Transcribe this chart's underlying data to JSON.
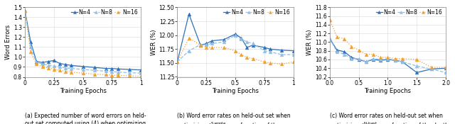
{
  "plot1": {
    "xlabel": "Training Epochs",
    "ylabel": "Word Errors",
    "xlim": [
      0,
      1.0
    ],
    "ylim": [
      0.8,
      1.5
    ],
    "yticks": [
      0.8,
      0.9,
      1.0,
      1.1,
      1.2,
      1.3,
      1.4,
      1.5
    ],
    "xticks": [
      0,
      0.25,
      0.5,
      0.75,
      1.0
    ],
    "xtick_labels": [
      "0",
      "0.25",
      "0.5",
      "0.75",
      "1"
    ],
    "legend_labels": [
      "N=4",
      "N=8",
      "N=16"
    ],
    "colors": [
      "#3070b8",
      "#90c0e8",
      "#f0a030"
    ],
    "markers": [
      "^",
      "^",
      "^"
    ],
    "linestyles": [
      "-",
      "--",
      ":"
    ],
    "N4_x": [
      0.0,
      0.05,
      0.1,
      0.15,
      0.2,
      0.25,
      0.3,
      0.35,
      0.4,
      0.5,
      0.6,
      0.7,
      0.75,
      0.8,
      0.9,
      1.0
    ],
    "N4_y": [
      1.47,
      1.15,
      0.955,
      0.945,
      0.955,
      0.965,
      0.935,
      0.925,
      0.915,
      0.905,
      0.895,
      0.885,
      0.885,
      0.88,
      0.875,
      0.87
    ],
    "N8_x": [
      0.0,
      0.05,
      0.1,
      0.15,
      0.2,
      0.25,
      0.3,
      0.35,
      0.4,
      0.5,
      0.6,
      0.7,
      0.75,
      0.8,
      0.9,
      1.0
    ],
    "N8_y": [
      1.47,
      1.1,
      0.945,
      0.93,
      0.92,
      0.91,
      0.9,
      0.89,
      0.885,
      0.875,
      0.865,
      0.858,
      0.853,
      0.848,
      0.842,
      0.838
    ],
    "N16_x": [
      0.0,
      0.05,
      0.1,
      0.15,
      0.2,
      0.25,
      0.3,
      0.35,
      0.4,
      0.5,
      0.6,
      0.7,
      0.75,
      0.8,
      0.9,
      1.0
    ],
    "N16_y": [
      1.47,
      1.05,
      0.93,
      0.905,
      0.89,
      0.878,
      0.867,
      0.855,
      0.848,
      0.838,
      0.828,
      0.822,
      0.818,
      0.815,
      0.81,
      0.805
    ]
  },
  "plot2": {
    "xlabel": "Training Epochs",
    "ylabel": "WER (%)",
    "xlim": [
      0,
      1.0
    ],
    "ylim": [
      11.25,
      12.5
    ],
    "yticks": [
      11.25,
      11.5,
      11.75,
      12.0,
      12.25,
      12.5
    ],
    "xticks": [
      0,
      0.25,
      0.5,
      0.75,
      1.0
    ],
    "xtick_labels": [
      "0",
      "0.25",
      "0.5",
      "0.75",
      "1"
    ],
    "legend_labels": [
      "N=4",
      "N=8",
      "N=16"
    ],
    "colors": [
      "#3070b8",
      "#90c0e8",
      "#f0a030"
    ],
    "markers": [
      "^",
      "^",
      "^"
    ],
    "linestyles": [
      "-",
      "--",
      ":"
    ],
    "N4_x": [
      0.0,
      0.1,
      0.2,
      0.25,
      0.3,
      0.4,
      0.5,
      0.55,
      0.6,
      0.65,
      0.75,
      0.8,
      0.9,
      1.0
    ],
    "N4_y": [
      11.52,
      12.38,
      11.82,
      11.85,
      11.9,
      11.92,
      12.02,
      11.95,
      11.78,
      11.82,
      11.78,
      11.75,
      11.73,
      11.72
    ],
    "N8_x": [
      0.0,
      0.1,
      0.2,
      0.25,
      0.3,
      0.4,
      0.5,
      0.55,
      0.6,
      0.65,
      0.75,
      0.8,
      0.9,
      1.0
    ],
    "N8_y": [
      11.52,
      11.72,
      11.83,
      11.83,
      11.85,
      11.88,
      12.0,
      11.93,
      11.88,
      11.85,
      11.72,
      11.7,
      11.65,
      11.65
    ],
    "N16_x": [
      0.0,
      0.1,
      0.2,
      0.25,
      0.3,
      0.4,
      0.5,
      0.55,
      0.6,
      0.65,
      0.75,
      0.8,
      0.9,
      1.0
    ],
    "N16_y": [
      11.52,
      11.95,
      11.82,
      11.78,
      11.78,
      11.78,
      11.72,
      11.65,
      11.6,
      11.58,
      11.52,
      11.5,
      11.48,
      11.52
    ]
  },
  "plot3": {
    "xlabel": "Training Epochs",
    "ylabel": "WER (%)",
    "xlim": [
      0.0,
      2.0
    ],
    "ylim": [
      10.2,
      11.8
    ],
    "yticks": [
      10.2,
      10.4,
      10.6,
      10.8,
      11.0,
      11.2,
      11.4,
      11.6,
      11.8
    ],
    "xticks": [
      0.0,
      0.5,
      1.0,
      1.5,
      2.0
    ],
    "xtick_labels": [
      "0.0",
      "0.5",
      "1.0",
      "1.5",
      "2.0"
    ],
    "legend_labels": [
      "N=4",
      "N=8",
      "N=16"
    ],
    "colors": [
      "#3070b8",
      "#90c0e8",
      "#f0a030"
    ],
    "markers": [
      "^",
      "^",
      "^"
    ],
    "linestyles": [
      "-",
      "--",
      ":"
    ],
    "N4_x": [
      0.0,
      0.125,
      0.25,
      0.375,
      0.5,
      0.625,
      0.75,
      0.875,
      1.0,
      1.125,
      1.25,
      1.5,
      1.75,
      2.0
    ],
    "N4_y": [
      11.08,
      10.82,
      10.78,
      10.65,
      10.6,
      10.55,
      10.6,
      10.58,
      10.6,
      10.58,
      10.55,
      10.3,
      10.38,
      10.4
    ],
    "N8_x": [
      0.0,
      0.125,
      0.25,
      0.375,
      0.5,
      0.625,
      0.75,
      0.875,
      1.0,
      1.125,
      1.25,
      1.5,
      1.75,
      2.0
    ],
    "N8_y": [
      11.08,
      10.78,
      10.72,
      10.62,
      10.62,
      10.55,
      10.62,
      10.6,
      10.62,
      10.58,
      10.55,
      10.45,
      10.38,
      10.3
    ],
    "N16_x": [
      0.0,
      0.125,
      0.25,
      0.375,
      0.5,
      0.625,
      0.75,
      0.875,
      1.0,
      1.125,
      1.25,
      1.5,
      1.75,
      2.0
    ],
    "N16_y": [
      11.52,
      11.12,
      11.08,
      10.9,
      10.82,
      10.72,
      10.72,
      10.65,
      10.65,
      10.62,
      10.62,
      10.6,
      10.42,
      10.42
    ]
  },
  "bg_color": "#ffffff",
  "plot_bg_color": "#ffffff",
  "grid_color": "#e0e0e0",
  "caption_fontsize": 5.5,
  "axis_label_fontsize": 6.0,
  "tick_fontsize": 5.5,
  "legend_fontsize": 5.5,
  "marker_size": 3.5,
  "linewidth": 0.9
}
